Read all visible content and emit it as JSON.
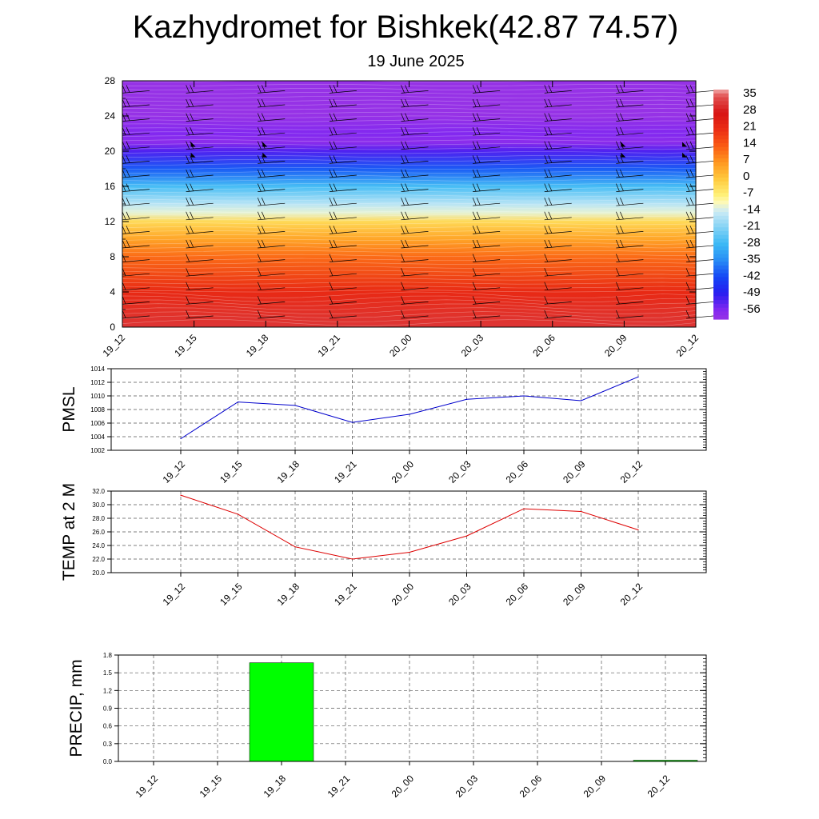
{
  "header": {
    "title": "Kazhydromet for Bishkek(42.87 74.57)",
    "subtitle": "19 June 2025"
  },
  "chart_data": [
    {
      "type": "heatmap",
      "name": "vertical-temperature-section",
      "x_categories": [
        "19_12",
        "19_15",
        "19_18",
        "19_21",
        "20_00",
        "20_03",
        "20_06",
        "20_09",
        "20_12"
      ],
      "y_ticks": [
        "0",
        "4",
        "8",
        "12",
        "16",
        "20",
        "24",
        "28"
      ],
      "ylim": [
        0,
        28
      ],
      "colorbar_labels": [
        "35",
        "28",
        "21",
        "14",
        "7",
        "0",
        "-7",
        "-14",
        "-21",
        "-28",
        "-35",
        "-42",
        "-49",
        "-56"
      ],
      "colorbar_range": [
        -60,
        38
      ],
      "temperature_profile": [
        {
          "y": 0,
          "t": 32
        },
        {
          "y": 4,
          "t": 22
        },
        {
          "y": 8,
          "t": 12
        },
        {
          "y": 10,
          "t": 5
        },
        {
          "y": 12,
          "t": -3
        },
        {
          "y": 13,
          "t": -12
        },
        {
          "y": 14,
          "t": -16
        },
        {
          "y": 16,
          "t": -27
        },
        {
          "y": 18,
          "t": -40
        },
        {
          "y": 20,
          "t": -52
        },
        {
          "y": 21,
          "t": -58
        },
        {
          "y": 22,
          "t": -56
        },
        {
          "y": 24,
          "t": -60
        },
        {
          "y": 28,
          "t": -60
        }
      ],
      "wind_barbs": true
    },
    {
      "type": "line",
      "name": "PMSL",
      "ylabel": "PMSL",
      "categories": [
        "19_12",
        "19_15",
        "19_18",
        "19_21",
        "20_00",
        "20_03",
        "20_06",
        "20_09",
        "20_12"
      ],
      "values": [
        1003.7,
        1009.1,
        1008.6,
        1006.1,
        1007.3,
        1009.5,
        1010.0,
        1009.3,
        1012.8
      ],
      "ylim": [
        1002,
        1014
      ],
      "yticks": [
        "1002",
        "1004",
        "1006",
        "1008",
        "1010",
        "1012",
        "1014"
      ],
      "color": "#0000cc",
      "grid": true
    },
    {
      "type": "line",
      "name": "TEMP at 2 M",
      "ylabel": "TEMP at 2 M",
      "categories": [
        "19_12",
        "19_15",
        "19_18",
        "19_21",
        "20_00",
        "20_03",
        "20_06",
        "20_09",
        "20_12"
      ],
      "values": [
        31.4,
        28.6,
        23.8,
        22.0,
        23.0,
        25.4,
        29.4,
        29.0,
        26.3
      ],
      "ylim": [
        20,
        32
      ],
      "yticks": [
        "20.0",
        "22.0",
        "24.0",
        "26.0",
        "28.0",
        "30.0",
        "32.0"
      ],
      "color": "#dd0000",
      "grid": true
    },
    {
      "type": "bar",
      "name": "PRECIP, mm",
      "ylabel": "PRECIP, mm",
      "categories": [
        "19_12",
        "19_15",
        "19_18",
        "19_21",
        "20_00",
        "20_03",
        "20_06",
        "20_09",
        "20_12"
      ],
      "values": [
        0,
        0,
        1.67,
        0,
        0,
        0,
        0,
        0,
        0.02
      ],
      "ylim": [
        0,
        1.8
      ],
      "yticks": [
        "0.0",
        "0.3",
        "0.6",
        "0.9",
        "1.2",
        "1.5",
        "1.8"
      ],
      "color": "#00ff00",
      "grid": true
    }
  ]
}
